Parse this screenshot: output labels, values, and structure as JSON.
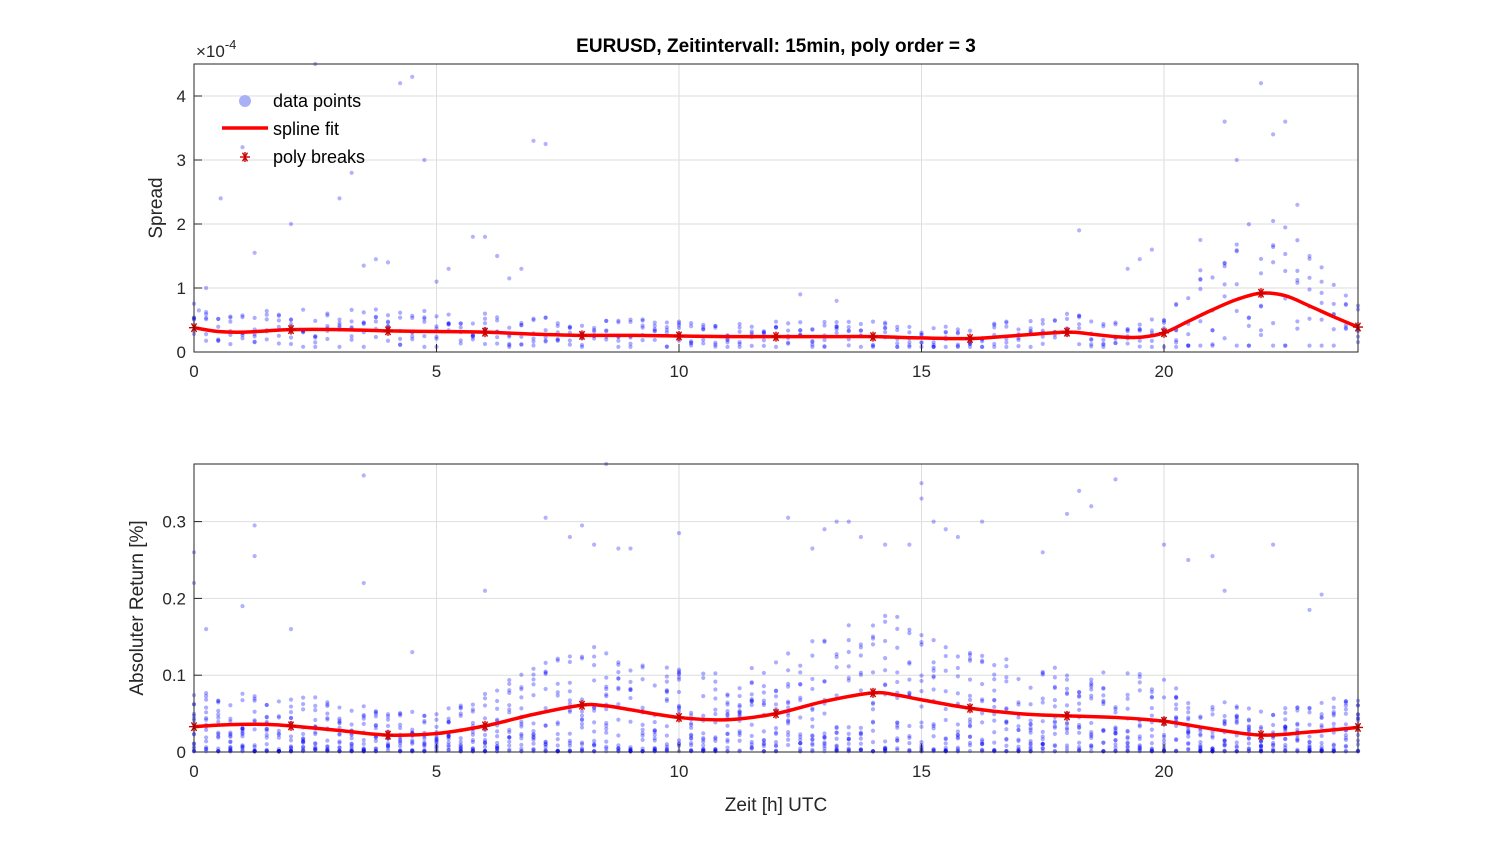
{
  "chart_data": [
    {
      "type": "scatter",
      "title": "EURUSD, Zeitintervall: 15min, poly order = 3",
      "ylabel": "Spread",
      "xlabel": "",
      "y_exponent_label": "×10",
      "y_exponent_power": "-4",
      "xlim": [
        0,
        24
      ],
      "ylim": [
        0,
        4.5
      ],
      "x_ticks": [
        0,
        5,
        10,
        15,
        20
      ],
      "y_ticks": [
        0,
        1,
        2,
        3,
        4
      ],
      "grid": true,
      "legend_position": "top-left",
      "legend": [
        {
          "label": "data points",
          "marker": "circle",
          "color": "#aab0f5"
        },
        {
          "label": "spline fit",
          "marker": "line",
          "color": "#ff0000"
        },
        {
          "label": "poly breaks",
          "marker": "asterisk",
          "color": "#cc0000"
        }
      ],
      "series": [
        {
          "name": "spline fit",
          "x": [
            0,
            0.5,
            1,
            1.5,
            2,
            3,
            4,
            5,
            6,
            7,
            8,
            9,
            10,
            11,
            12,
            13,
            14,
            15,
            16,
            17,
            18,
            18.5,
            19,
            19.5,
            20,
            20.5,
            21,
            21.5,
            22,
            22.5,
            23,
            23.5,
            24
          ],
          "y": [
            0.38,
            0.32,
            0.31,
            0.33,
            0.35,
            0.35,
            0.33,
            0.32,
            0.31,
            0.28,
            0.26,
            0.26,
            0.25,
            0.24,
            0.24,
            0.24,
            0.24,
            0.22,
            0.21,
            0.26,
            0.31,
            0.28,
            0.24,
            0.23,
            0.3,
            0.48,
            0.66,
            0.82,
            0.92,
            0.88,
            0.72,
            0.55,
            0.39
          ]
        },
        {
          "name": "poly breaks",
          "x": [
            0,
            2,
            4,
            6,
            8,
            10,
            12,
            14,
            16,
            18,
            20,
            22,
            24
          ],
          "y": [
            0.38,
            0.35,
            0.33,
            0.31,
            0.26,
            0.25,
            0.24,
            0.24,
            0.21,
            0.31,
            0.3,
            0.92,
            0.39
          ]
        },
        {
          "name": "data points",
          "outliers_x": [
            0.1,
            0.25,
            0.55,
            1.0,
            1.25,
            2.0,
            2.5,
            3.0,
            3.25,
            3.5,
            3.75,
            4.0,
            4.25,
            4.5,
            4.75,
            5.0,
            5.25,
            5.75,
            6.0,
            6.25,
            6.5,
            6.75,
            7.0,
            7.25,
            12.5,
            13.25,
            18.25,
            19.25,
            19.5,
            19.75,
            20.25,
            20.75,
            21.25,
            21.5,
            22.0,
            22.25,
            22.5,
            22.75,
            23.0
          ],
          "outliers_y": [
            0.65,
            1.0,
            2.4,
            3.2,
            1.55,
            2.0,
            4.5,
            2.4,
            2.8,
            1.35,
            1.45,
            1.4,
            4.2,
            4.3,
            3.0,
            1.1,
            1.3,
            1.8,
            1.8,
            1.5,
            1.15,
            1.3,
            3.3,
            3.25,
            0.9,
            0.8,
            1.9,
            1.3,
            1.45,
            1.6,
            0.75,
            1.75,
            3.6,
            3.0,
            4.2,
            3.4,
            3.6,
            2.3,
            1.5
          ]
        }
      ]
    },
    {
      "type": "scatter",
      "title": "",
      "ylabel": "Absoluter Return [%]",
      "xlabel": "Zeit [h] UTC",
      "xlim": [
        0,
        24
      ],
      "ylim": [
        0,
        0.375
      ],
      "x_ticks": [
        0,
        5,
        10,
        15,
        20
      ],
      "y_ticks": [
        0,
        0.1,
        0.2,
        0.3
      ],
      "grid": true,
      "series": [
        {
          "name": "spline fit",
          "x": [
            0,
            0.5,
            1,
            1.5,
            2,
            3,
            4,
            5,
            6,
            7,
            8,
            8.5,
            9,
            10,
            11,
            12,
            13,
            14,
            14.5,
            15,
            16,
            17,
            18,
            19,
            20,
            21,
            22,
            23,
            24
          ],
          "y": [
            0.033,
            0.035,
            0.036,
            0.036,
            0.034,
            0.028,
            0.022,
            0.024,
            0.034,
            0.049,
            0.061,
            0.06,
            0.055,
            0.045,
            0.042,
            0.05,
            0.066,
            0.077,
            0.074,
            0.068,
            0.057,
            0.05,
            0.047,
            0.045,
            0.04,
            0.03,
            0.022,
            0.026,
            0.032
          ]
        },
        {
          "name": "poly breaks",
          "x": [
            0,
            2,
            4,
            6,
            8,
            10,
            12,
            14,
            16,
            18,
            20,
            22,
            24
          ],
          "y": [
            0.033,
            0.034,
            0.022,
            0.034,
            0.061,
            0.045,
            0.05,
            0.077,
            0.057,
            0.047,
            0.04,
            0.022,
            0.032
          ]
        },
        {
          "name": "data points",
          "outliers_x": [
            0.0,
            0.0,
            0.25,
            1.0,
            1.25,
            1.25,
            2.0,
            3.5,
            3.5,
            4.5,
            6.0,
            7.25,
            7.75,
            8.0,
            8.25,
            8.5,
            8.75,
            9.0,
            10.0,
            12.25,
            12.75,
            13.0,
            13.25,
            13.5,
            13.75,
            14.25,
            14.75,
            15.0,
            15.0,
            15.25,
            15.5,
            15.75,
            16.25,
            17.5,
            18.0,
            18.25,
            18.5,
            19.0,
            20.0,
            20.5,
            21.0,
            21.25,
            22.25,
            23.0,
            23.25
          ],
          "outliers_y": [
            0.26,
            0.22,
            0.16,
            0.19,
            0.295,
            0.255,
            0.16,
            0.36,
            0.22,
            0.13,
            0.21,
            0.305,
            0.28,
            0.295,
            0.27,
            0.375,
            0.265,
            0.265,
            0.285,
            0.305,
            0.265,
            0.29,
            0.3,
            0.3,
            0.28,
            0.27,
            0.27,
            0.35,
            0.33,
            0.3,
            0.29,
            0.28,
            0.3,
            0.26,
            0.31,
            0.34,
            0.32,
            0.355,
            0.27,
            0.25,
            0.255,
            0.21,
            0.27,
            0.185,
            0.205
          ]
        }
      ]
    }
  ]
}
